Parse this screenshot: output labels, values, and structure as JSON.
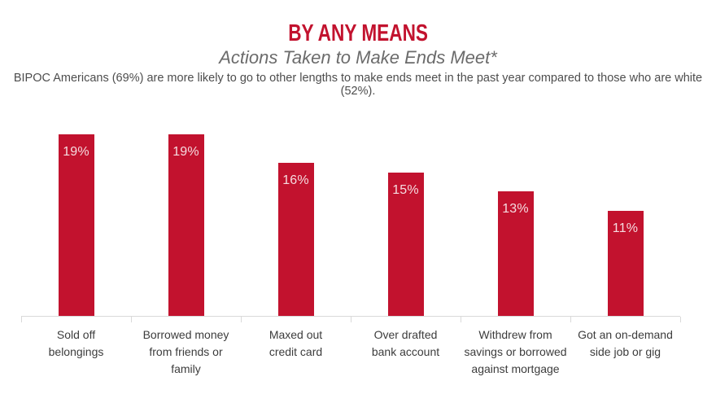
{
  "header": {
    "title": "BY ANY MEANS",
    "subtitle": "Actions Taken to Make Ends Meet*",
    "description": "BIPOC Americans (69%) are more likely to go to other lengths to make ends meet in the past year compared to those who are white (52%)."
  },
  "chart_data": {
    "type": "bar",
    "title": "BY ANY MEANS",
    "subtitle": "Actions Taken to Make Ends Meet*",
    "categories": [
      "Sold off belongings",
      "Borrowed money from friends or family",
      "Maxed out credit card",
      "Over drafted bank account",
      "Withdrew from savings or borrowed against mortgage",
      "Got an on-demand side job or gig"
    ],
    "category_lines": [
      [
        "Sold off",
        "belongings"
      ],
      [
        "Borrowed money",
        "from friends or",
        "family"
      ],
      [
        "Maxed out",
        "credit card"
      ],
      [
        "Over drafted",
        "bank account"
      ],
      [
        "Withdrew from",
        "savings or borrowed",
        "against mortgage"
      ],
      [
        "Got an on-demand",
        "side job or gig"
      ]
    ],
    "values": [
      19,
      19,
      16,
      15,
      13,
      11
    ],
    "value_labels": [
      "19%",
      "19%",
      "16%",
      "15%",
      "13%",
      "11%"
    ],
    "xlabel": "",
    "ylabel": "",
    "ylim": [
      0,
      20
    ],
    "grid": false,
    "legend": false,
    "bar_color": "#C2122E",
    "value_label_color": "#F5DCE0"
  },
  "colors": {
    "title_red": "#C2122E",
    "subtitle_gray": "#6B6B6B",
    "description_gray": "#4D4D4D",
    "axis_gray": "#D9D9D9",
    "category_label_gray": "#3C3C3C"
  }
}
